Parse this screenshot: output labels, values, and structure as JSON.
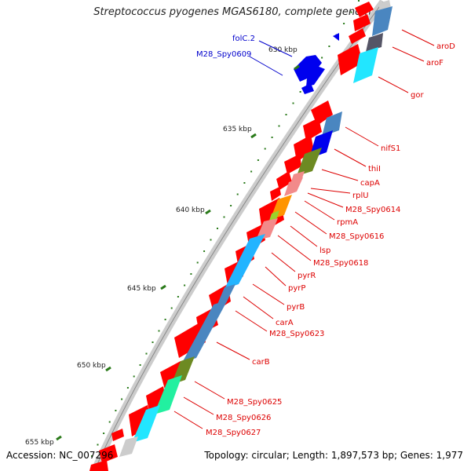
{
  "title": "Streptococcus pyogenes MGAS6180, complete genome",
  "accession_text": "Accession: NC_007296",
  "info_text": "Topology: circular; Length: 1,897,573 bp; Genes: 1,977",
  "colors": {
    "forward_gene": "#ff0000",
    "backbone": "#cccccc",
    "tick": "#2a7a1a",
    "label_red": "#dd0000",
    "label_blue": "#0000cc",
    "blue_gene": "#0000ee",
    "steelblue": "#4a86c0",
    "cyan": "#22e6ff",
    "olive": "#6d8a22",
    "orange": "#ff9400",
    "pink": "#f28a8a"
  },
  "ruler": [
    {
      "label": "630 kbp"
    },
    {
      "label": "635 kbp"
    },
    {
      "label": "640 kbp"
    },
    {
      "label": "645 kbp"
    },
    {
      "label": "650 kbp"
    },
    {
      "label": "655 kbp"
    }
  ],
  "genes_right": [
    {
      "name": "aroD"
    },
    {
      "name": "aroF"
    },
    {
      "name": "gor"
    },
    {
      "name": "nifS1"
    },
    {
      "name": "thiI"
    },
    {
      "name": "capA"
    },
    {
      "name": "rplU"
    },
    {
      "name": "M28_Spy0614"
    },
    {
      "name": "rpmA"
    },
    {
      "name": "M28_Spy0616"
    },
    {
      "name": "lsp"
    },
    {
      "name": "M28_Spy0618"
    },
    {
      "name": "pyrR"
    },
    {
      "name": "pyrP"
    },
    {
      "name": "pyrB"
    },
    {
      "name": "carA"
    },
    {
      "name": "M28_Spy0623"
    },
    {
      "name": "carB"
    },
    {
      "name": "M28_Spy0625"
    },
    {
      "name": "M28_Spy0626"
    },
    {
      "name": "M28_Spy0627"
    }
  ],
  "genes_left": [
    {
      "name": "folC.2"
    },
    {
      "name": "M28_Spy0609"
    }
  ]
}
